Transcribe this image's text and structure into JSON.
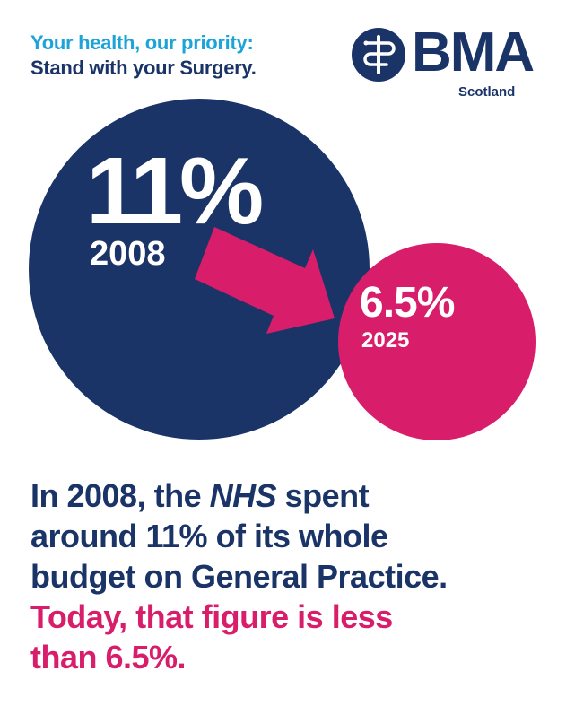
{
  "header": {
    "tagline_line1": "Your health, our priority:",
    "tagline_line2": "Stand with your Surgery."
  },
  "logo": {
    "name": "BMA",
    "region": "Scotland"
  },
  "graphic": {
    "from": {
      "value": "11%",
      "year": "2008",
      "percent": 11
    },
    "to": {
      "value": "6.5%",
      "year": "2025",
      "percent": 6.5
    }
  },
  "statement": {
    "line1_pre": "In 2008, the ",
    "line1_em": "NHS",
    "line1_post": " spent",
    "line2": "around 11% of its whole",
    "line3": "budget on General Practice.",
    "line4": "Today, that figure is less",
    "line5": "than 6.5%."
  },
  "colors": {
    "navy": "#1b3468",
    "pink": "#d81e6a",
    "cyan": "#1ca3d9"
  }
}
